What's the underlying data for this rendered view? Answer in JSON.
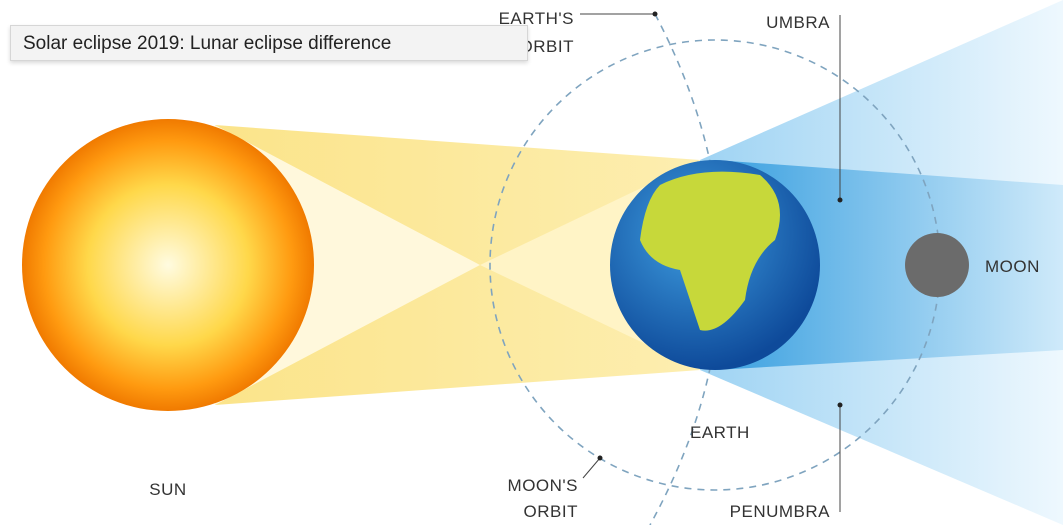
{
  "tooltip": "Solar eclipse 2019: Lunar eclipse difference",
  "labels": {
    "earths_orbit": [
      "EARTH'S",
      "ORBIT"
    ],
    "umbra": "UMBRA",
    "moon": "MOON",
    "earth": "EARTH",
    "penumbra": "PENUMBRA",
    "sun": "SUN",
    "moons_orbit": [
      "MOON'S",
      "ORBIT"
    ]
  }
}
